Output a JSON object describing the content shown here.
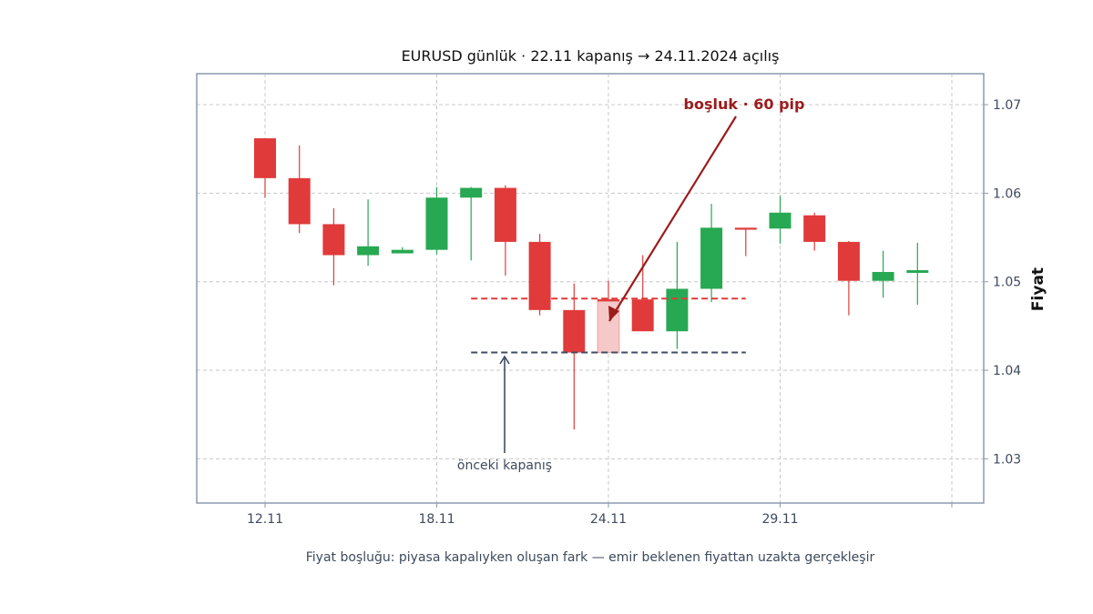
{
  "chart_data": {
    "type": "candlestick",
    "title": "EURUSD günlük · 22.11 kapanış → 24.11.2024 açılış",
    "ylabel": "Fiyat",
    "y_axis_side": "right",
    "ylim": [
      1.025,
      1.0735
    ],
    "yticks": [
      "1.03",
      "1.04",
      "1.05",
      "1.06",
      "1.07"
    ],
    "xticks": [
      {
        "label": "12.11",
        "index": 0
      },
      {
        "label": "18.11",
        "index": 5
      },
      {
        "label": "24.11",
        "index": 10
      },
      {
        "label": "29.11",
        "index": 15
      },
      {
        "label": "",
        "index": 20
      }
    ],
    "candles": [
      {
        "open": 1.0662,
        "high": 1.0662,
        "low": 1.0595,
        "close": 1.0617,
        "dir": "down"
      },
      {
        "open": 1.0617,
        "high": 1.0654,
        "low": 1.0555,
        "close": 1.0565,
        "dir": "down"
      },
      {
        "open": 1.0565,
        "high": 1.0583,
        "low": 1.0496,
        "close": 1.053,
        "dir": "down"
      },
      {
        "open": 1.053,
        "high": 1.0593,
        "low": 1.0518,
        "close": 1.054,
        "dir": "up"
      },
      {
        "open": 1.0532,
        "high": 1.0539,
        "low": 1.0532,
        "close": 1.0536,
        "dir": "up"
      },
      {
        "open": 1.0536,
        "high": 1.0607,
        "low": 1.0531,
        "close": 1.0595,
        "dir": "up"
      },
      {
        "open": 1.0595,
        "high": 1.0607,
        "low": 1.0524,
        "close": 1.0606,
        "dir": "up"
      },
      {
        "open": 1.0606,
        "high": 1.0609,
        "low": 1.0507,
        "close": 1.0545,
        "dir": "down"
      },
      {
        "open": 1.0545,
        "high": 1.0554,
        "low": 1.0462,
        "close": 1.0468,
        "dir": "down"
      },
      {
        "open": 1.0468,
        "high": 1.0498,
        "low": 1.0333,
        "close": 1.042,
        "dir": "down"
      },
      {
        "open": 1.048,
        "high": 1.0501,
        "low": 1.048,
        "close": 1.048,
        "dir": "down"
      },
      {
        "open": 1.048,
        "high": 1.053,
        "low": 1.0444,
        "close": 1.0444,
        "dir": "down"
      },
      {
        "open": 1.0444,
        "high": 1.0545,
        "low": 1.0424,
        "close": 1.0492,
        "dir": "up"
      },
      {
        "open": 1.0492,
        "high": 1.0588,
        "low": 1.0477,
        "close": 1.0561,
        "dir": "up"
      },
      {
        "open": 1.0561,
        "high": 1.0561,
        "low": 1.0529,
        "close": 1.0559,
        "dir": "down"
      },
      {
        "open": 1.056,
        "high": 1.0597,
        "low": 1.0543,
        "close": 1.0578,
        "dir": "up"
      },
      {
        "open": 1.0575,
        "high": 1.0578,
        "low": 1.0535,
        "close": 1.0545,
        "dir": "down"
      },
      {
        "open": 1.0545,
        "high": 1.0546,
        "low": 1.0462,
        "close": 1.0501,
        "dir": "down"
      },
      {
        "open": 1.0501,
        "high": 1.0535,
        "low": 1.0482,
        "close": 1.0511,
        "dir": "up"
      },
      {
        "open": 1.051,
        "high": 1.0544,
        "low": 1.0474,
        "close": 1.0513,
        "dir": "up"
      }
    ],
    "gap_box": {
      "index": 10,
      "low": 1.042,
      "high": 1.048
    },
    "gap_lines": {
      "upper": 1.0481,
      "lower": 1.042,
      "from_index": 6,
      "to_index": 14
    },
    "annotations": {
      "gap_label": "boşluk · 60 pip",
      "prev_close_label": "önceki kapanış"
    },
    "grid": true,
    "caption": "Fiyat boşluğu: piyasa kapalıyken oluşan fark — emir beklenen fiyattan uzakta gerçekleşir",
    "colors": {
      "up": "#27a852",
      "down": "#e03a3a",
      "gap_fill": "#f6c9c9",
      "gap_line": "#e03a3a",
      "prev_close_line": "#3f4d63",
      "gap_annotation": "#9b1c1c",
      "frame": "#8a9ab0",
      "grid": "#c8c8c8"
    }
  }
}
